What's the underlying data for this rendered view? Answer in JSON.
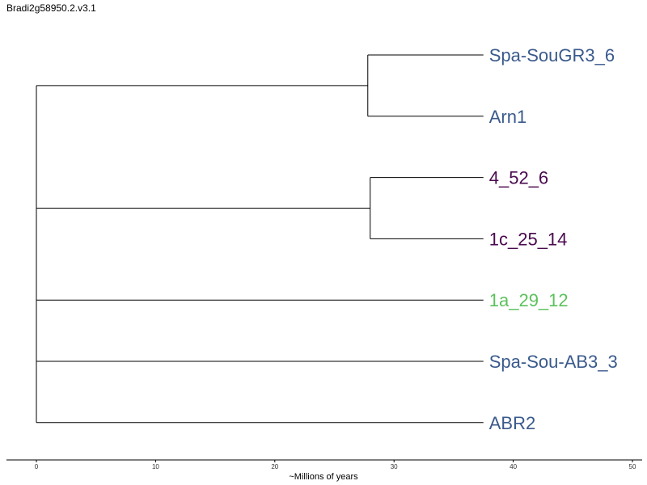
{
  "title": "Bradi2g58950.2.v3.1",
  "axis": {
    "label": "~Millions of years",
    "ticks": [
      0,
      10,
      20,
      30,
      40,
      50
    ],
    "range": [
      0,
      50
    ]
  },
  "tree": {
    "tips": [
      {
        "label": "Spa-SouGR3_6",
        "color": "#3a5a8c"
      },
      {
        "label": "Arn1",
        "color": "#3a5a8c"
      },
      {
        "label": "4_52_6",
        "color": "#4a0a4f"
      },
      {
        "label": "1c_25_14",
        "color": "#4a0a4f"
      },
      {
        "label": "1a_29_12",
        "color": "#5cc15c"
      },
      {
        "label": "Spa-Sou-AB3_3",
        "color": "#3a5a8c"
      },
      {
        "label": "ABR2",
        "color": "#3a5a8c"
      }
    ],
    "tip_age": 37.5,
    "clades": [
      {
        "tips": [
          0,
          1
        ],
        "node_age": 27.8
      },
      {
        "tips": [
          2,
          3
        ],
        "node_age": 28.0
      }
    ],
    "root_age": 0
  }
}
